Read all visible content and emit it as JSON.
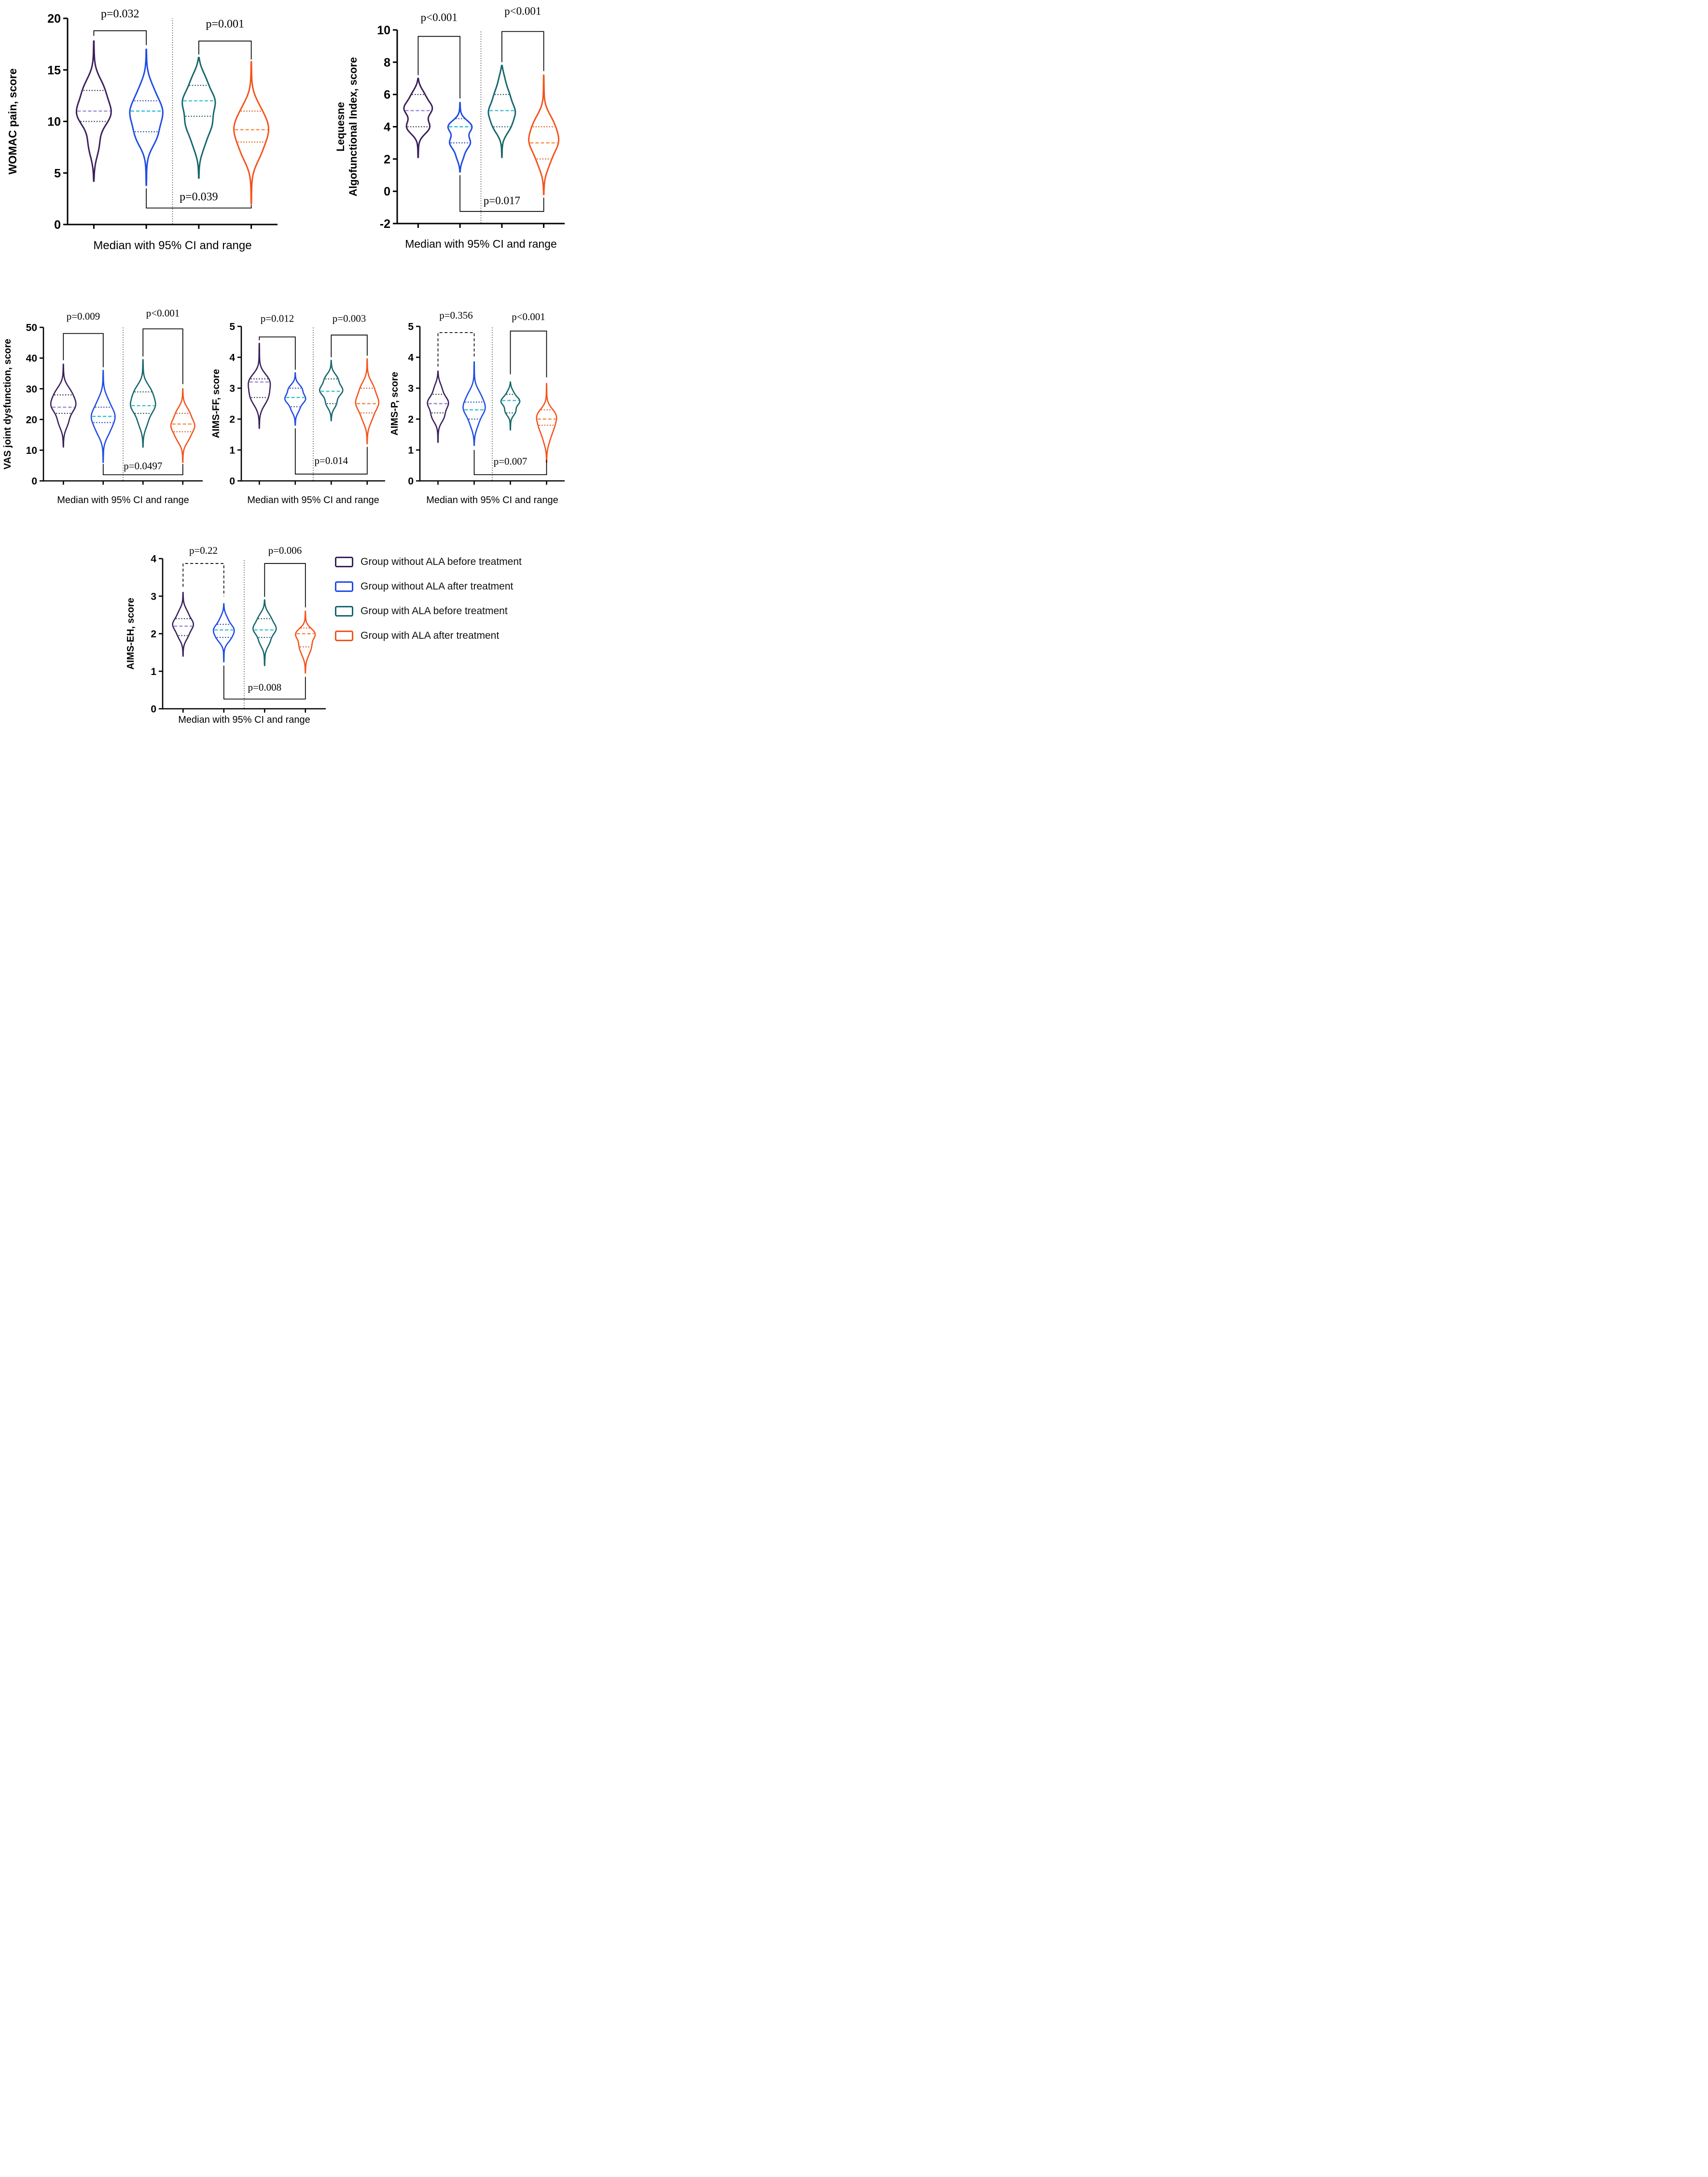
{
  "legend": {
    "items": [
      {
        "label": "Group without ALA before treatment",
        "color": "#3b1f5c"
      },
      {
        "label": "Group without ALA after treatment",
        "color": "#1f4ce4"
      },
      {
        "label": "Group with ALA before treatment",
        "color": "#17666d"
      },
      {
        "label": "Group with ALA after treatment",
        "color": "#f4531b"
      }
    ]
  },
  "groups": [
    {
      "name": "Group without ALA before treatment",
      "short": "without-ala-before",
      "stroke": "#3b1f5c",
      "median_color": "#9e85d6",
      "ci_color": "#34254e"
    },
    {
      "name": "Group without ALA after treatment",
      "short": "without-ala-after",
      "stroke": "#1f4ce4",
      "median_color": "#2fbcd6",
      "ci_color": "#173eb5"
    },
    {
      "name": "Group with ALA before treatment",
      "short": "with-ala-before",
      "stroke": "#17666d",
      "median_color": "#3ec1cc",
      "ci_color": "#125058"
    },
    {
      "name": "Group with ALA after treatment",
      "short": "with-ala-after",
      "stroke": "#f4531b",
      "median_color": "#f68a45",
      "ci_color": "#e04b0d"
    }
  ],
  "chart_data": [
    {
      "id": "womac-pain",
      "type": "violin",
      "ylabel": "WOMAC pain, score",
      "xlabel": "Median with 95% CI and range",
      "ylim": [
        0,
        20
      ],
      "yticks": [
        0,
        5,
        10,
        15,
        20
      ],
      "separator": true,
      "violins": [
        {
          "group": 0,
          "median": 11,
          "ci95": [
            10,
            13
          ],
          "range": [
            4.2,
            17.8
          ],
          "bulges": [
            [
              0.48,
              1
            ],
            [
              0.66,
              0.6
            ],
            [
              0.25,
              0.35
            ]
          ],
          "w": 1
        },
        {
          "group": 1,
          "median": 11,
          "ci95": [
            9,
            12
          ],
          "range": [
            3.8,
            17
          ],
          "bulges": [
            [
              0.54,
              1
            ],
            [
              0.36,
              0.7
            ],
            [
              0.7,
              0.45
            ]
          ],
          "w": 0.95
        },
        {
          "group": 2,
          "median": 12,
          "ci95": [
            10.5,
            13.5
          ],
          "range": [
            4.5,
            16.2
          ],
          "bulges": [
            [
              0.64,
              1
            ],
            [
              0.45,
              0.75
            ],
            [
              0.82,
              0.55
            ],
            [
              0.28,
              0.35
            ]
          ],
          "w": 0.95
        },
        {
          "group": 3,
          "median": 9.2,
          "ci95": [
            8,
            11
          ],
          "range": [
            2,
            15.8
          ],
          "bulges": [
            [
              0.52,
              1
            ],
            [
              0.36,
              0.6
            ],
            [
              0.66,
              0.55
            ]
          ],
          "w": 1
        }
      ],
      "brackets": [
        {
          "pair": [
            0,
            1
          ],
          "label": "p=0.032",
          "y": 18.8,
          "ends": [
            18.3,
            17.4
          ],
          "label_y": 20.1,
          "style": "solid"
        },
        {
          "pair": [
            2,
            3
          ],
          "label": "p=0.001",
          "y": 17.8,
          "ends": [
            16.5,
            16.0
          ],
          "label_y": 19.1,
          "style": "solid"
        }
      ],
      "bottom_bracket": {
        "pair": [
          1,
          3
        ],
        "label": "p=0.039",
        "y": 1.6,
        "ends": [
          3.5,
          1.9
        ],
        "label_y": 2.35
      }
    },
    {
      "id": "lequesne",
      "type": "violin",
      "ylabel": "Lequesne\nAlgofunctional Index,  score",
      "xlabel": "Median with 95% CI and range",
      "ylim": [
        -2,
        10
      ],
      "yticks": [
        -2,
        0,
        2,
        4,
        6,
        8,
        10
      ],
      "separator": true,
      "violins": [
        {
          "group": 0,
          "median": 5,
          "ci95": [
            4,
            6
          ],
          "range": [
            2.1,
            7.0
          ],
          "bulges": [
            [
              0.62,
              1
            ],
            [
              0.38,
              0.85
            ],
            [
              0.8,
              0.5
            ]
          ],
          "w": 0.95
        },
        {
          "group": 1,
          "median": 4,
          "ci95": [
            3,
            4.5
          ],
          "range": [
            1.2,
            5.5
          ],
          "bulges": [
            [
              0.66,
              1
            ],
            [
              0.42,
              0.8
            ],
            [
              0.22,
              0.3
            ]
          ],
          "w": 0.8
        },
        {
          "group": 2,
          "median": 5,
          "ci95": [
            4,
            6
          ],
          "range": [
            2.1,
            7.8
          ],
          "bulges": [
            [
              0.5,
              1
            ],
            [
              0.33,
              0.7
            ],
            [
              0.68,
              0.6
            ],
            [
              0.86,
              0.3
            ]
          ],
          "w": 0.9
        },
        {
          "group": 3,
          "median": 3,
          "ci95": [
            2,
            4
          ],
          "range": [
            -0.2,
            7.2
          ],
          "bulges": [
            [
              0.44,
              1
            ],
            [
              0.6,
              0.65
            ],
            [
              0.27,
              0.45
            ]
          ],
          "w": 1
        }
      ],
      "brackets": [
        {
          "pair": [
            0,
            1
          ],
          "label": "p<0.001",
          "y": 9.6,
          "ends": [
            7.2,
            5.75
          ],
          "label_y": 10.55,
          "style": "solid"
        },
        {
          "pair": [
            2,
            3
          ],
          "label": "p<0.001",
          "y": 9.9,
          "ends": [
            8.0,
            7.45
          ],
          "label_y": 10.95,
          "style": "solid"
        }
      ],
      "bottom_bracket": {
        "pair": [
          1,
          3
        ],
        "label": "p=0.017",
        "y": -1.25,
        "ends": [
          1.0,
          -0.4
        ],
        "label_y": -0.8
      }
    },
    {
      "id": "vas-joint-dysfunction",
      "type": "violin",
      "ylabel": "VAS joint dysfunction, score",
      "xlabel": "Median with 95% CI and range",
      "ylim": [
        0,
        50
      ],
      "yticks": [
        0,
        10,
        20,
        30,
        40,
        50
      ],
      "separator": true,
      "violins": [
        {
          "group": 0,
          "median": 24,
          "ci95": [
            22,
            28
          ],
          "range": [
            11,
            38
          ],
          "bulges": [
            [
              0.5,
              1
            ],
            [
              0.66,
              0.65
            ],
            [
              0.3,
              0.45
            ]
          ],
          "w": 1
        },
        {
          "group": 1,
          "median": 21,
          "ci95": [
            19,
            24
          ],
          "range": [
            6,
            36
          ],
          "bulges": [
            [
              0.5,
              1
            ],
            [
              0.34,
              0.55
            ],
            [
              0.66,
              0.45
            ]
          ],
          "w": 0.95
        },
        {
          "group": 2,
          "median": 24.5,
          "ci95": [
            22,
            29
          ],
          "range": [
            11,
            39.5
          ],
          "bulges": [
            [
              0.47,
              1
            ],
            [
              0.64,
              0.7
            ],
            [
              0.28,
              0.4
            ]
          ],
          "w": 1
        },
        {
          "group": 3,
          "median": 18.5,
          "ci95": [
            16,
            22
          ],
          "range": [
            6,
            30
          ],
          "bulges": [
            [
              0.5,
              1
            ],
            [
              0.68,
              0.6
            ],
            [
              0.33,
              0.55
            ]
          ],
          "w": 0.95
        }
      ],
      "brackets": [
        {
          "pair": [
            0,
            1
          ],
          "label": "p=0.009",
          "y": 48.0,
          "ends": [
            39.3,
            37.0
          ],
          "label_y": 52.5,
          "style": "solid"
        },
        {
          "pair": [
            2,
            3
          ],
          "label": "p<0.001",
          "y": 49.5,
          "ends": [
            40.5,
            31.5
          ],
          "label_y": 53.5,
          "style": "solid"
        }
      ],
      "bottom_bracket": {
        "pair": [
          1,
          3
        ],
        "label": "p=0.0497",
        "y": 2.0,
        "ends": [
          5.5,
          5.5
        ],
        "label_y": 3.8
      }
    },
    {
      "id": "aims-ff",
      "type": "violin",
      "ylabel": "AIMS-FF, score",
      "xlabel": "Median with 95% CI and range",
      "ylim": [
        0,
        5
      ],
      "yticks": [
        0,
        1,
        2,
        3,
        4,
        5
      ],
      "separator": true,
      "violins": [
        {
          "group": 0,
          "median": 3.2,
          "ci95": [
            2.7,
            3.3
          ],
          "range": [
            1.7,
            4.45
          ],
          "bulges": [
            [
              0.56,
              1
            ],
            [
              0.4,
              0.7
            ],
            [
              0.3,
              0.4
            ]
          ],
          "w": 0.95
        },
        {
          "group": 1,
          "median": 2.7,
          "ci95": [
            2.4,
            3.0
          ],
          "range": [
            1.8,
            3.5
          ],
          "bulges": [
            [
              0.5,
              1
            ],
            [
              0.7,
              0.7
            ],
            [
              0.3,
              0.4
            ]
          ],
          "w": 0.9
        },
        {
          "group": 2,
          "median": 2.9,
          "ci95": [
            2.5,
            3.3
          ],
          "range": [
            1.95,
            3.9
          ],
          "bulges": [
            [
              0.5,
              1
            ],
            [
              0.7,
              0.6
            ],
            [
              0.28,
              0.5
            ]
          ],
          "w": 1
        },
        {
          "group": 3,
          "median": 2.5,
          "ci95": [
            2.2,
            3.0
          ],
          "range": [
            1.2,
            3.95
          ],
          "bulges": [
            [
              0.48,
              1
            ],
            [
              0.66,
              0.6
            ],
            [
              0.3,
              0.45
            ]
          ],
          "w": 1
        }
      ],
      "brackets": [
        {
          "pair": [
            0,
            1
          ],
          "label": "p=0.012",
          "y": 4.66,
          "ends": [
            4.55,
            3.6
          ],
          "label_y": 5.15,
          "style": "solid"
        },
        {
          "pair": [
            2,
            3
          ],
          "label": "p=0.003",
          "y": 4.72,
          "ends": [
            4.0,
            4.05
          ],
          "label_y": 5.15,
          "style": "solid"
        }
      ],
      "bottom_bracket": {
        "pair": [
          1,
          3
        ],
        "label": "p=0.014",
        "y": 0.22,
        "ends": [
          1.7,
          1.1
        ],
        "label_y": 0.55
      }
    },
    {
      "id": "aims-p",
      "type": "violin",
      "ylabel": "AIMS-P,  score",
      "xlabel": "Median with 95% CI and range",
      "ylim": [
        0,
        5
      ],
      "yticks": [
        0,
        1,
        2,
        3,
        4,
        5
      ],
      "separator": true,
      "violins": [
        {
          "group": 0,
          "median": 2.5,
          "ci95": [
            2.2,
            2.8
          ],
          "range": [
            1.25,
            3.55
          ],
          "bulges": [
            [
              0.56,
              1
            ],
            [
              0.36,
              0.6
            ],
            [
              0.76,
              0.4
            ]
          ],
          "w": 0.95
        },
        {
          "group": 1,
          "median": 2.3,
          "ci95": [
            2.0,
            2.55
          ],
          "range": [
            1.15,
            3.85
          ],
          "bulges": [
            [
              0.44,
              1
            ],
            [
              0.6,
              0.55
            ],
            [
              0.26,
              0.4
            ]
          ],
          "w": 1
        },
        {
          "group": 2,
          "median": 2.6,
          "ci95": [
            2.2,
            2.8
          ],
          "range": [
            1.65,
            3.2
          ],
          "bulges": [
            [
              0.6,
              1
            ],
            [
              0.38,
              0.55
            ],
            [
              0.78,
              0.35
            ]
          ],
          "w": 0.85
        },
        {
          "group": 3,
          "median": 2.0,
          "ci95": [
            1.8,
            2.3
          ],
          "range": [
            0.6,
            3.15
          ],
          "bulges": [
            [
              0.6,
              1
            ],
            [
              0.44,
              0.65
            ],
            [
              0.28,
              0.3
            ]
          ],
          "w": 0.9
        }
      ],
      "brackets": [
        {
          "pair": [
            0,
            1
          ],
          "label": "p=0.356",
          "y": 4.8,
          "ends": [
            3.7,
            4.0
          ],
          "label_y": 5.25,
          "style": "dashed"
        },
        {
          "pair": [
            2,
            3
          ],
          "label": "p<0.001",
          "y": 4.85,
          "ends": [
            3.45,
            3.35
          ],
          "label_y": 5.2,
          "style": "solid"
        }
      ],
      "bottom_bracket": {
        "pair": [
          1,
          3
        ],
        "label": "p=0.007",
        "y": 0.2,
        "ends": [
          1.0,
          0.68
        ],
        "label_y": 0.52
      }
    },
    {
      "id": "aims-eh",
      "type": "violin",
      "ylabel": "AIMS-EH, score",
      "xlabel": "Median with 95% CI and range",
      "ylim": [
        0,
        4
      ],
      "yticks": [
        0,
        1,
        2,
        3,
        4
      ],
      "separator": true,
      "violins": [
        {
          "group": 0,
          "median": 2.2,
          "ci95": [
            1.95,
            2.4
          ],
          "range": [
            1.4,
            3.1
          ],
          "bulges": [
            [
              0.5,
              1
            ],
            [
              0.32,
              0.5
            ],
            [
              0.68,
              0.45
            ]
          ],
          "w": 0.9
        },
        {
          "group": 1,
          "median": 2.1,
          "ci95": [
            1.9,
            2.25
          ],
          "range": [
            1.25,
            2.8
          ],
          "bulges": [
            [
              0.56,
              1
            ],
            [
              0.4,
              0.65
            ],
            [
              0.74,
              0.4
            ]
          ],
          "w": 0.9
        },
        {
          "group": 2,
          "median": 2.1,
          "ci95": [
            1.9,
            2.4
          ],
          "range": [
            1.15,
            2.9
          ],
          "bulges": [
            [
              0.56,
              1
            ],
            [
              0.74,
              0.55
            ],
            [
              0.36,
              0.45
            ]
          ],
          "w": 1
        },
        {
          "group": 3,
          "median": 2.0,
          "ci95": [
            1.65,
            2.15
          ],
          "range": [
            0.95,
            2.6
          ],
          "bulges": [
            [
              0.64,
              1
            ],
            [
              0.44,
              0.5
            ],
            [
              0.3,
              0.25
            ]
          ],
          "w": 0.85
        }
      ],
      "brackets": [
        {
          "pair": [
            0,
            1
          ],
          "label": "p=0.22",
          "y": 3.87,
          "ends": [
            3.25,
            3.0
          ],
          "label_y": 4.13,
          "style": "dashed"
        },
        {
          "pair": [
            2,
            3
          ],
          "label": "p=0.006",
          "y": 3.87,
          "ends": [
            2.98,
            2.7
          ],
          "label_y": 4.13,
          "style": "solid"
        }
      ],
      "bottom_bracket": {
        "pair": [
          1,
          3
        ],
        "label": "p=0.008",
        "y": 0.26,
        "ends": [
          1.15,
          0.85
        ],
        "label_y": 0.48
      }
    }
  ]
}
